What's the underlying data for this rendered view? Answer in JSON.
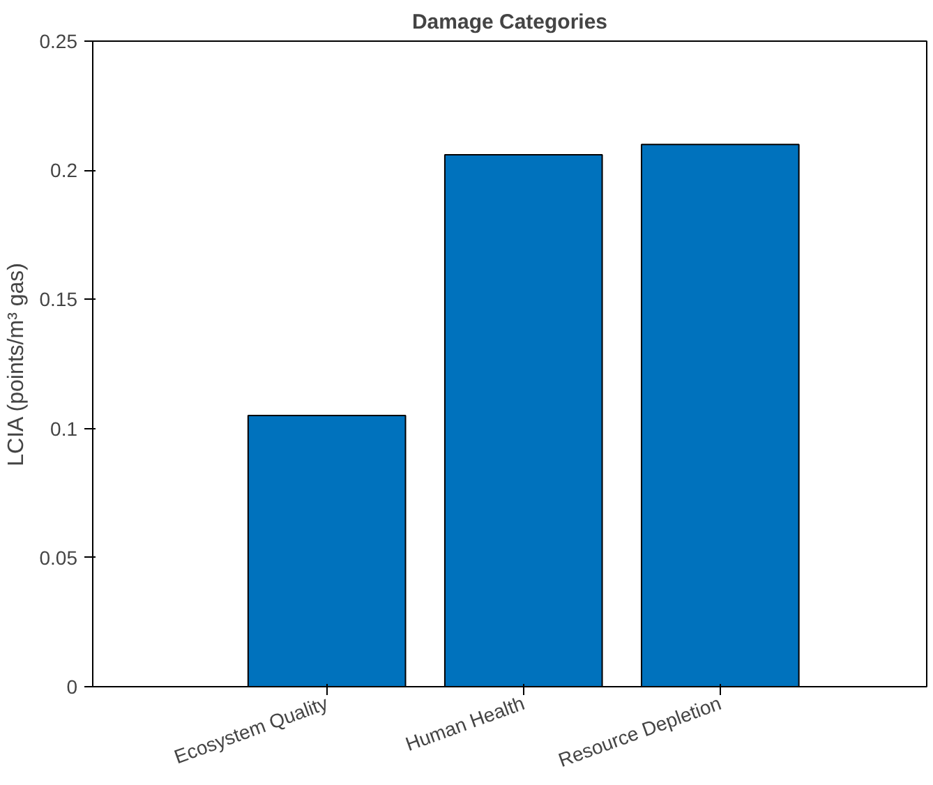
{
  "chart_data": {
    "type": "bar",
    "title": "Damage Categories",
    "ylabel": "LCIA (points/m³ gas)",
    "categories": [
      "Ecosystem Quality",
      "Human Health",
      "Resource Depletion"
    ],
    "values": [
      0.105,
      0.206,
      0.21
    ],
    "color": "#0072bd",
    "ylim": [
      0,
      0.25
    ],
    "yticks": [
      0,
      0.05,
      0.1,
      0.15,
      0.2,
      0.25
    ],
    "grid": false
  }
}
